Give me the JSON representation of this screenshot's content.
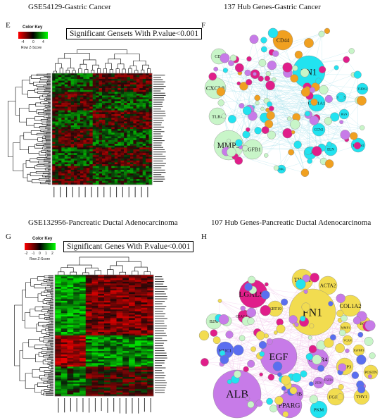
{
  "panels": {
    "E": {
      "letter": "E",
      "title": "GSE54129-Gastric Cancer",
      "color_key": {
        "title": "Color Key",
        "ticks": [
          "-4",
          "0",
          "4"
        ],
        "scale_label": "Row Z-Score"
      },
      "annotation": "Significant Gensets With P.value<0.001"
    },
    "F": {
      "letter": "F",
      "title": "137 Hub Genes-Gastric Cancer",
      "nodes": [
        "CD44",
        "FN1",
        "CD4",
        "CXCL8",
        "TLR4",
        "MMP9",
        "TGFB1",
        "COL1A1",
        "CCN2",
        "SPP1",
        "ELN",
        "THBS1",
        "BGN",
        "THBS2",
        "ITGA5",
        "DNG"
      ]
    },
    "G": {
      "letter": "G",
      "title": "GSE132956-Pancreatic Ductal Adenocarcinoma",
      "color_key": {
        "title": "Color Key",
        "ticks": [
          "-2",
          "-1",
          "0",
          "1",
          "2"
        ],
        "scale_label": "Row Z-Score"
      },
      "annotation": "Significant Genes With P.value<0.001"
    },
    "H": {
      "letter": "H",
      "title": "107 Hub Genes-Pancreatic Ductal Adenocarcinoma",
      "nodes": [
        "TIMP1",
        "ACTA2",
        "LGALS3",
        "KRT19",
        "FN1",
        "COL1A2",
        "B2M",
        "BGN",
        "MUC1",
        "EGF",
        "CXCR4",
        "MMP3",
        "IGFBP3",
        "POSTN",
        "VCAN",
        "LCN2",
        "THY1",
        "FGF10",
        "GSK3B",
        "ALB",
        "PPARG",
        "PKM",
        "ZEB1",
        "FGFR1",
        "CEACAM5",
        "MMP1"
      ]
    }
  },
  "colors": {
    "heat_low": "#1dbf1d",
    "heat_mid": "#000000",
    "heat_high": "#e01010",
    "node_cyan": "#22e3f0",
    "node_green": "#c8f5c8",
    "node_orange": "#f0a020",
    "node_magenta": "#e01e8a",
    "node_yellow": "#f2dc50",
    "node_violet": "#c77be8",
    "node_blue": "#5a6ef0"
  }
}
